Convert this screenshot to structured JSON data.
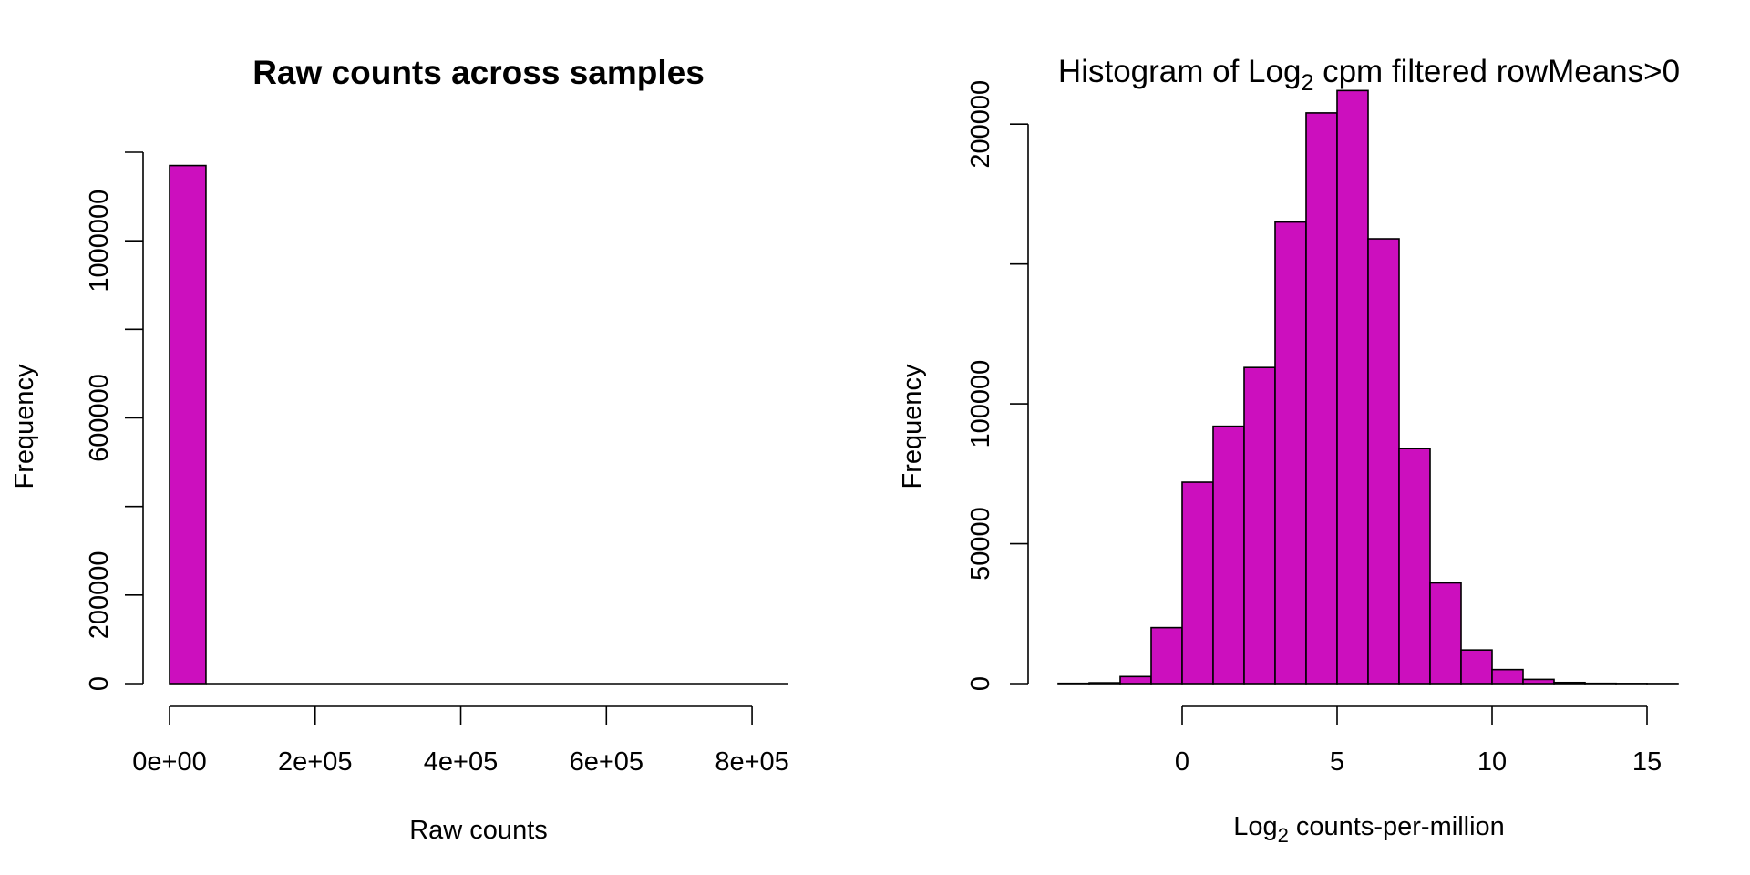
{
  "colors": {
    "bar_fill": "#CC0FBE",
    "stroke": "#000000",
    "background": "#FFFFFF"
  },
  "chart_data": [
    {
      "type": "bar",
      "subtype": "histogram",
      "title": "Raw counts across samples",
      "xlabel": "Raw counts",
      "ylabel": "Frequency",
      "xlim": [
        0,
        850000
      ],
      "ylim": [
        0,
        1200000
      ],
      "x_ticks": [
        0,
        200000,
        400000,
        600000,
        800000
      ],
      "x_tick_labels": [
        "0e+00",
        "2e+05",
        "4e+05",
        "6e+05",
        "8e+05"
      ],
      "y_ticks": [
        0,
        200000,
        400000,
        600000,
        800000,
        1000000,
        1200000
      ],
      "y_tick_labels": [
        "0",
        "200000",
        "",
        "600000",
        "",
        "1000000",
        ""
      ],
      "bins": [
        {
          "start": 0,
          "end": 50000,
          "count": 1170000
        },
        {
          "start": 50000,
          "end": 850000,
          "count": 0
        }
      ]
    },
    {
      "type": "bar",
      "subtype": "histogram",
      "title_prefix": "Histogram of Log",
      "title_subscript": "2",
      "title_suffix": " cpm filtered rowMeans>0",
      "xlabel_prefix": "Log",
      "xlabel_subscript": "2",
      "xlabel_suffix": " counts-per-million",
      "ylabel": "Frequency",
      "xlim": [
        -4,
        16
      ],
      "ylim": [
        0,
        210000
      ],
      "x_ticks": [
        0,
        5,
        10,
        15
      ],
      "x_tick_labels": [
        "0",
        "5",
        "10",
        "15"
      ],
      "y_ticks": [
        0,
        50000,
        100000,
        150000,
        200000
      ],
      "y_tick_labels": [
        "0",
        "50000",
        "100000",
        "",
        "200000"
      ],
      "bins": [
        {
          "start": -4,
          "end": -3,
          "count": 100
        },
        {
          "start": -3,
          "end": -2,
          "count": 300
        },
        {
          "start": -2,
          "end": -1,
          "count": 2500
        },
        {
          "start": -1,
          "end": 0,
          "count": 20000
        },
        {
          "start": 0,
          "end": 1,
          "count": 72000
        },
        {
          "start": 1,
          "end": 2,
          "count": 92000
        },
        {
          "start": 2,
          "end": 3,
          "count": 113000
        },
        {
          "start": 3,
          "end": 4,
          "count": 165000
        },
        {
          "start": 4,
          "end": 5,
          "count": 204000
        },
        {
          "start": 5,
          "end": 6,
          "count": 212000
        },
        {
          "start": 6,
          "end": 7,
          "count": 159000
        },
        {
          "start": 7,
          "end": 8,
          "count": 84000
        },
        {
          "start": 8,
          "end": 9,
          "count": 36000
        },
        {
          "start": 9,
          "end": 10,
          "count": 12000
        },
        {
          "start": 10,
          "end": 11,
          "count": 5000
        },
        {
          "start": 11,
          "end": 12,
          "count": 1500
        },
        {
          "start": 12,
          "end": 13,
          "count": 400
        },
        {
          "start": 13,
          "end": 14,
          "count": 100
        },
        {
          "start": 14,
          "end": 15,
          "count": 50
        },
        {
          "start": 15,
          "end": 16,
          "count": 20
        }
      ]
    }
  ]
}
